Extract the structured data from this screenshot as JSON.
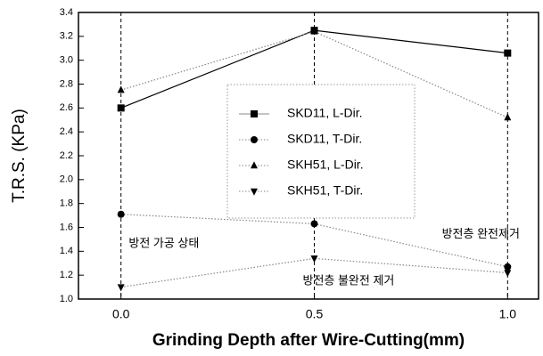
{
  "chart_data": {
    "type": "line",
    "xlabel": "Grinding Depth after Wire-Cutting(mm)",
    "ylabel": "T.R.S. (KPa)",
    "x": [
      0.0,
      0.5,
      1.0
    ],
    "xlim": [
      -0.11,
      1.08
    ],
    "xticks": [
      {
        "value": 0,
        "label": "0.0"
      },
      0.5,
      {
        "value": 1,
        "label": "1.0"
      }
    ],
    "ylim": [
      1.0,
      3.4
    ],
    "yticks": [
      {
        "value": 1,
        "label": "1.0"
      },
      1.2,
      1.4,
      1.6,
      1.8,
      {
        "value": 2,
        "label": "2.0"
      },
      2.2,
      2.4,
      2.6,
      2.8,
      {
        "value": 3,
        "label": "3.0"
      },
      3.2,
      3.4
    ],
    "vertical_gridlines": true,
    "series": [
      {
        "name": "SKD11, L-Dir.",
        "color": "#000000",
        "marker": "square",
        "line_style": "solid",
        "values": [
          2.6,
          3.25,
          3.06
        ]
      },
      {
        "name": "SKD11, T-Dir.",
        "color": "#000000",
        "marker": "circle",
        "line_style": "dotted",
        "values": [
          1.71,
          1.63,
          1.27
        ]
      },
      {
        "name": "SKH51, L-Dir.",
        "color": "#000000",
        "marker": "triangle-up",
        "line_style": "dotted",
        "values": [
          2.75,
          3.24,
          2.52
        ]
      },
      {
        "name": "SKH51, T-Dir.",
        "color": "#000000",
        "marker": "triangle-down",
        "line_style": "dotted",
        "values": [
          1.1,
          1.34,
          1.22
        ]
      }
    ],
    "annotations": [
      {
        "text": "방전 가공 상태",
        "x": 0.02,
        "y": 1.46
      },
      {
        "text": "방전층 불완전 제거",
        "x": 0.47,
        "y": 1.15
      },
      {
        "text": "방전층 완전제거",
        "x": 0.83,
        "y": 1.54
      }
    ]
  }
}
